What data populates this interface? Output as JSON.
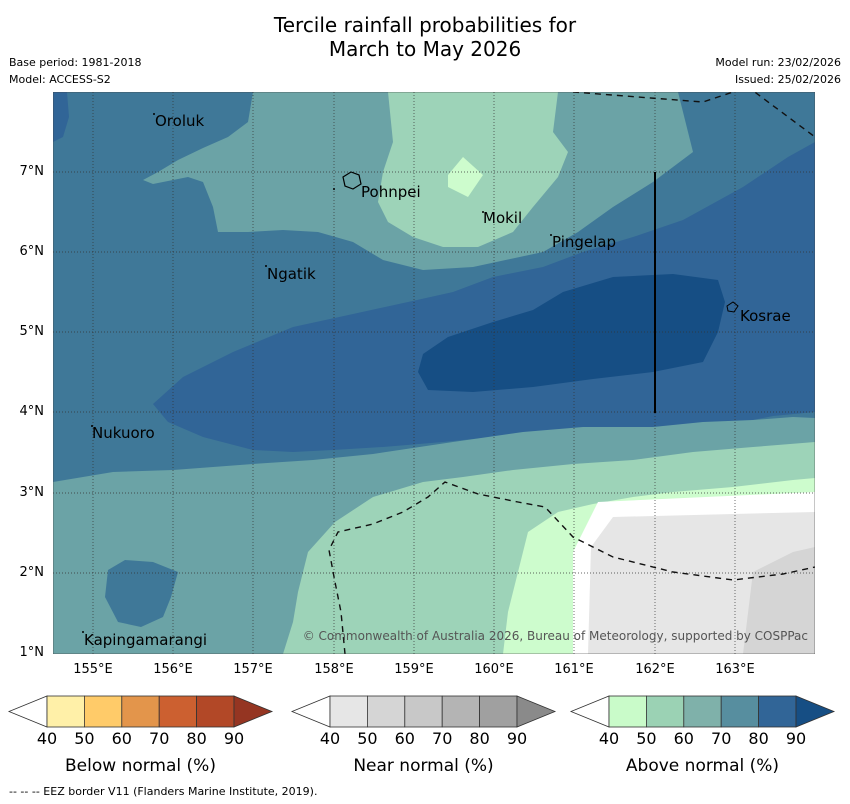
{
  "title_line1": "Tercile rainfall probabilities for",
  "title_line2": "March to May 2026",
  "meta_left": [
    "Base period: 1981-2018",
    "Model: ACCESS-S2"
  ],
  "meta_right": [
    "Model run: 23/02/2026",
    "Issued: 25/02/2026"
  ],
  "y_ticks": [
    "7°N",
    "6°N",
    "5°N",
    "4°N",
    "3°N",
    "2°N",
    "1°N"
  ],
  "x_ticks": [
    "155°E",
    "156°E",
    "157°E",
    "158°E",
    "159°E",
    "160°E",
    "161°E",
    "162°E",
    "163°E"
  ],
  "places": [
    "Oroluk",
    "Pohnpei",
    "Mokil",
    "Pingelap",
    "Ngatik",
    "Kosrae",
    "Nukuoro",
    "Kapingamarangi"
  ],
  "copyright": "© Commonwealth of Australia 2026, Bureau of Meteorology, supported by COSPPac",
  "colorbars": [
    {
      "label": "Below normal (%)",
      "ticks": [
        "40",
        "50",
        "60",
        "70",
        "80",
        "90"
      ],
      "colors": [
        "#fff0a8",
        "#ffcb69",
        "#e3954b",
        "#cc6030",
        "#b24827",
        "#953522"
      ]
    },
    {
      "label": "Near normal (%)",
      "ticks": [
        "40",
        "50",
        "60",
        "70",
        "80",
        "90"
      ],
      "colors": [
        "#e6e6e6",
        "#d5d5d5",
        "#c8c8c8",
        "#b4b4b4",
        "#a0a0a0",
        "#8a8a8a"
      ]
    },
    {
      "label": "Above normal (%)",
      "ticks": [
        "40",
        "50",
        "60",
        "70",
        "80",
        "90"
      ],
      "colors": [
        "#c9fbc9",
        "#9bd2b4",
        "#7fb1aa",
        "#578e9f",
        "#316597",
        "#164e84"
      ]
    }
  ],
  "footer": "--  --  -- EEZ border V11 (Flanders Marine Institute, 2019)."
}
